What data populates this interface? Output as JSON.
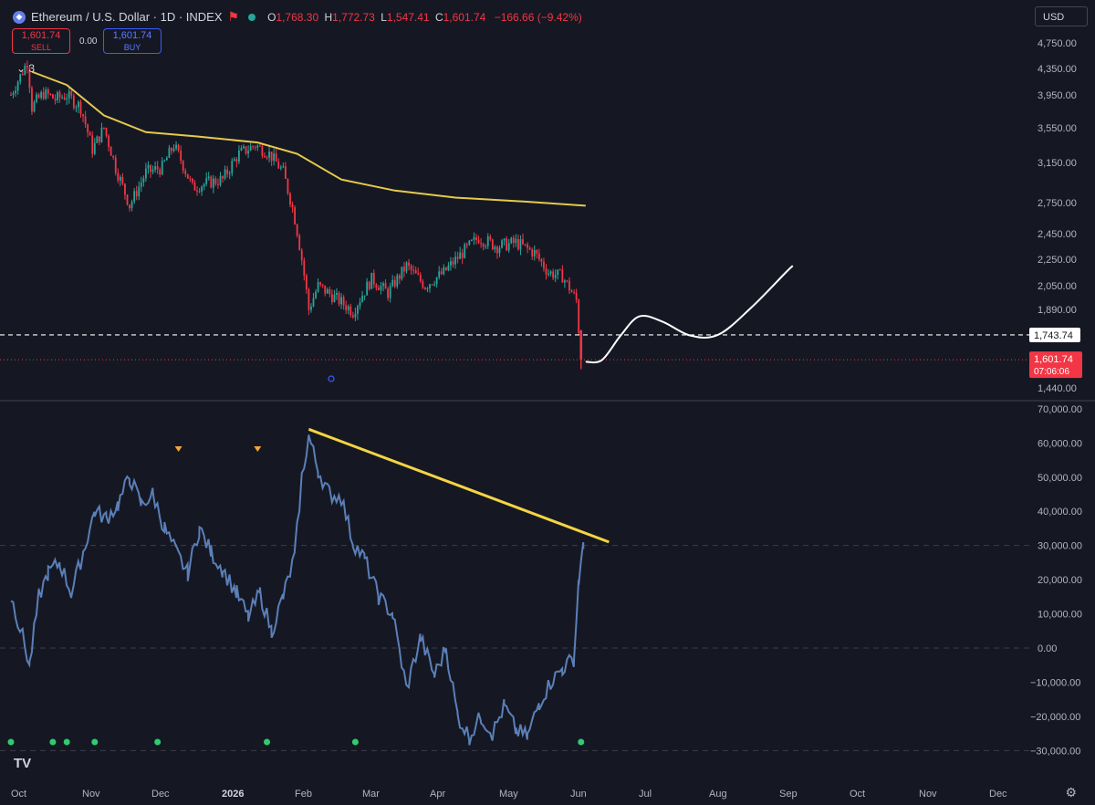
{
  "header": {
    "symbol": "Ethereum / U.S. Dollar · 1D · INDEX",
    "o_label": "O",
    "o_value": "1,768.30",
    "h_label": "H",
    "h_value": "1,772.73",
    "l_label": "L",
    "l_value": "1,547.41",
    "c_label": "C",
    "c_value": "1,601.74",
    "change": "−166.66 (−9.42%)"
  },
  "trade": {
    "sell_price": "1,601.74",
    "sell_label": "SELL",
    "spread": "0.00",
    "buy_price": "1,601.74",
    "buy_label": "BUY"
  },
  "indicators_count": "3",
  "currency": "USD",
  "price_axis": {
    "ticks": [
      "4,750.00",
      "4,350.00",
      "3,950.00",
      "3,550.00",
      "3,150.00",
      "2,750.00",
      "2,450.00",
      "2,250.00",
      "2,050.00",
      "1,890.00",
      "1,440.00"
    ],
    "horizontal_line_label": "1,743.74",
    "last_price_label": "1,601.74",
    "countdown": "07:06:06"
  },
  "osc_axis": {
    "ticks": [
      "70,000.00",
      "60,000.00",
      "50,000.00",
      "40,000.00",
      "30,000.00",
      "20,000.00",
      "10,000.00",
      "0.00",
      "−10,000.00",
      "−20,000.00",
      "−30,000.00"
    ]
  },
  "time_axis": [
    "Oct",
    "Nov",
    "Dec",
    "2026",
    "Feb",
    "Mar",
    "Apr",
    "May",
    "Jun",
    "Jul",
    "Aug",
    "Sep",
    "Oct",
    "Nov",
    "Dec"
  ],
  "colors": {
    "background": "#151823",
    "up": "#26a69a",
    "down": "#f23645",
    "ma": "#e5c94d",
    "oscillator": "#5b7fb8",
    "trendline": "#f5d442",
    "projection": "#ffffff",
    "marker_triangle": "#f7a534",
    "marker_dot": "#2ecc71"
  },
  "chart_data": [
    {
      "type": "candlestick",
      "title": "Ethereum / U.S. Dollar · 1D · INDEX",
      "x_start": "2025-10-01",
      "ylim": [
        1440,
        4750
      ],
      "close_path": [
        [
          "2025-10-01",
          3950
        ],
        [
          "2025-10-08",
          4450
        ],
        [
          "2025-10-10",
          3800
        ],
        [
          "2025-10-15",
          3980
        ],
        [
          "2025-10-20",
          3900
        ],
        [
          "2025-10-25",
          3950
        ],
        [
          "2025-10-31",
          3800
        ],
        [
          "2025-11-05",
          3300
        ],
        [
          "2025-11-10",
          3550
        ],
        [
          "2025-11-15",
          3100
        ],
        [
          "2025-11-21",
          2720
        ],
        [
          "2025-11-28",
          3050
        ],
        [
          "2025-12-05",
          3100
        ],
        [
          "2025-12-10",
          3350
        ],
        [
          "2025-12-18",
          2900
        ],
        [
          "2025-12-25",
          2950
        ],
        [
          "2025-12-31",
          2980
        ],
        [
          "2026-01-07",
          3250
        ],
        [
          "2026-01-14",
          3350
        ],
        [
          "2026-01-20",
          3250
        ],
        [
          "2026-01-26",
          3050
        ],
        [
          "2026-01-30",
          2700
        ],
        [
          "2026-02-03",
          2250
        ],
        [
          "2026-02-06",
          1890
        ],
        [
          "2026-02-10",
          2050
        ],
        [
          "2026-02-18",
          1960
        ],
        [
          "2026-02-25",
          1880
        ],
        [
          "2026-03-05",
          2100
        ],
        [
          "2026-03-12",
          2000
        ],
        [
          "2026-03-20",
          2200
        ],
        [
          "2026-03-28",
          2050
        ],
        [
          "2026-04-05",
          2150
        ],
        [
          "2026-04-13",
          2300
        ],
        [
          "2026-04-20",
          2420
        ],
        [
          "2026-04-28",
          2350
        ],
        [
          "2026-05-06",
          2380
        ],
        [
          "2026-05-14",
          2300
        ],
        [
          "2026-05-20",
          2150
        ],
        [
          "2026-05-26",
          2120
        ],
        [
          "2026-06-01",
          1950
        ],
        [
          "2026-06-03",
          1602
        ]
      ],
      "last": {
        "open": 1768.3,
        "high": 1772.73,
        "low": 1547.41,
        "close": 1601.74
      },
      "moving_average": [
        [
          "2025-10-10",
          4300
        ],
        [
          "2025-10-25",
          4100
        ],
        [
          "2025-11-10",
          3700
        ],
        [
          "2025-11-28",
          3500
        ],
        [
          "2025-12-20",
          3450
        ],
        [
          "2026-01-15",
          3380
        ],
        [
          "2026-02-01",
          3250
        ],
        [
          "2026-02-20",
          2980
        ],
        [
          "2026-03-15",
          2870
        ],
        [
          "2026-04-10",
          2800
        ],
        [
          "2026-05-10",
          2760
        ],
        [
          "2026-06-05",
          2720
        ]
      ],
      "horizontal_line": 1743.74,
      "projection": [
        [
          "2026-06-05",
          1590
        ],
        [
          "2026-06-12",
          1600
        ],
        [
          "2026-06-20",
          1740
        ],
        [
          "2026-06-28",
          1850
        ],
        [
          "2026-07-08",
          1820
        ],
        [
          "2026-07-20",
          1740
        ],
        [
          "2026-08-01",
          1745
        ],
        [
          "2026-08-15",
          1900
        ],
        [
          "2026-08-30",
          2150
        ],
        [
          "2026-09-02",
          2200
        ]
      ]
    },
    {
      "type": "line",
      "ylim": [
        -30000,
        70000
      ],
      "series": [
        {
          "values": [
            [
              "2025-10-01",
              15000
            ],
            [
              "2025-10-05",
              6000
            ],
            [
              "2025-10-09",
              -5000
            ],
            [
              "2025-10-13",
              15000
            ],
            [
              "2025-10-17",
              22000
            ],
            [
              "2025-10-22",
              25000
            ],
            [
              "2025-10-27",
              16000
            ],
            [
              "2025-11-01",
              28000
            ],
            [
              "2025-11-06",
              40000
            ],
            [
              "2025-11-11",
              38000
            ],
            [
              "2025-11-16",
              42000
            ],
            [
              "2025-11-21",
              50000
            ],
            [
              "2025-11-26",
              42000
            ],
            [
              "2025-12-01",
              45000
            ],
            [
              "2025-12-06",
              35000
            ],
            [
              "2025-12-11",
              28000
            ],
            [
              "2025-12-16",
              22000
            ],
            [
              "2025-12-21",
              35000
            ],
            [
              "2025-12-26",
              28000
            ],
            [
              "2025-12-31",
              23000
            ],
            [
              "2026-01-06",
              16000
            ],
            [
              "2026-01-11",
              9000
            ],
            [
              "2026-01-16",
              16000
            ],
            [
              "2026-01-21",
              5000
            ],
            [
              "2026-01-26",
              15000
            ],
            [
              "2026-01-31",
              27000
            ],
            [
              "2026-02-03",
              50000
            ],
            [
              "2026-02-06",
              62000
            ],
            [
              "2026-02-10",
              52000
            ],
            [
              "2026-02-15",
              45000
            ],
            [
              "2026-02-20",
              44000
            ],
            [
              "2026-02-25",
              31000
            ],
            [
              "2026-03-02",
              26000
            ],
            [
              "2026-03-08",
              15000
            ],
            [
              "2026-03-14",
              10000
            ],
            [
              "2026-03-20",
              -12000
            ],
            [
              "2026-03-26",
              3000
            ],
            [
              "2026-04-01",
              -8000
            ],
            [
              "2026-04-06",
              0
            ],
            [
              "2026-04-11",
              -20000
            ],
            [
              "2026-04-16",
              -26000
            ],
            [
              "2026-04-21",
              -20000
            ],
            [
              "2026-04-26",
              -25000
            ],
            [
              "2026-05-01",
              -17000
            ],
            [
              "2026-05-06",
              -24000
            ],
            [
              "2026-05-11",
              -26000
            ],
            [
              "2026-05-16",
              -16000
            ],
            [
              "2026-05-21",
              -10000
            ],
            [
              "2026-05-26",
              -6000
            ],
            [
              "2026-05-31",
              -3000
            ],
            [
              "2026-06-02",
              20000
            ],
            [
              "2026-06-04",
              29000
            ]
          ]
        }
      ],
      "trendline": [
        [
          "2026-02-06",
          64000
        ],
        [
          "2026-06-15",
          31000
        ]
      ],
      "marker_triangles": [
        "2025-12-12",
        "2026-01-15"
      ],
      "marker_dots": [
        "2025-10-01",
        "2025-10-19",
        "2025-10-25",
        "2025-11-06",
        "2025-12-03",
        "2026-01-19",
        "2026-02-26",
        "2026-06-03"
      ]
    }
  ]
}
